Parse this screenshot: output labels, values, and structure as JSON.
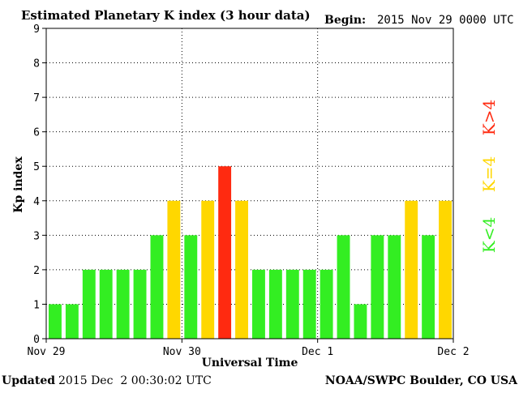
{
  "header": {
    "title": "Estimated Planetary K index (3 hour data)",
    "begin_label": "Begin:",
    "begin_value": "2015 Nov 29 0000 UTC"
  },
  "footer": {
    "updated_label": "Updated",
    "updated_value": "2015 Dec  2 00:30:02 UTC",
    "credit": "NOAA/SWPC Boulder, CO USA"
  },
  "legend": {
    "items": [
      {
        "text": "K<4",
        "color": "#33ee22"
      },
      {
        "text": "K=4",
        "color": "#ffd700"
      },
      {
        "text": "K>4",
        "color": "#ff2a10"
      }
    ]
  },
  "chart_data": {
    "type": "bar",
    "title": "Estimated Planetary K index (3 hour data)",
    "xlabel": "Universal Time",
    "ylabel": "Kp index",
    "ylim": [
      0,
      9
    ],
    "y_ticks": [
      "0",
      "1",
      "2",
      "3",
      "4",
      "5",
      "6",
      "7",
      "8",
      "9"
    ],
    "x_ticks": [
      "Nov 29",
      "Nov 30",
      "Dec 1",
      "Dec 2"
    ],
    "bars_per_day": 8,
    "grid": true,
    "colors": {
      "below": "#33ee22",
      "equal": "#ffd700",
      "above": "#ff2a10"
    },
    "values": [
      1,
      1,
      2,
      2,
      2,
      2,
      3,
      4,
      3,
      4,
      5,
      4,
      2,
      2,
      2,
      2,
      2,
      3,
      1,
      3,
      3,
      4,
      3,
      4
    ]
  }
}
